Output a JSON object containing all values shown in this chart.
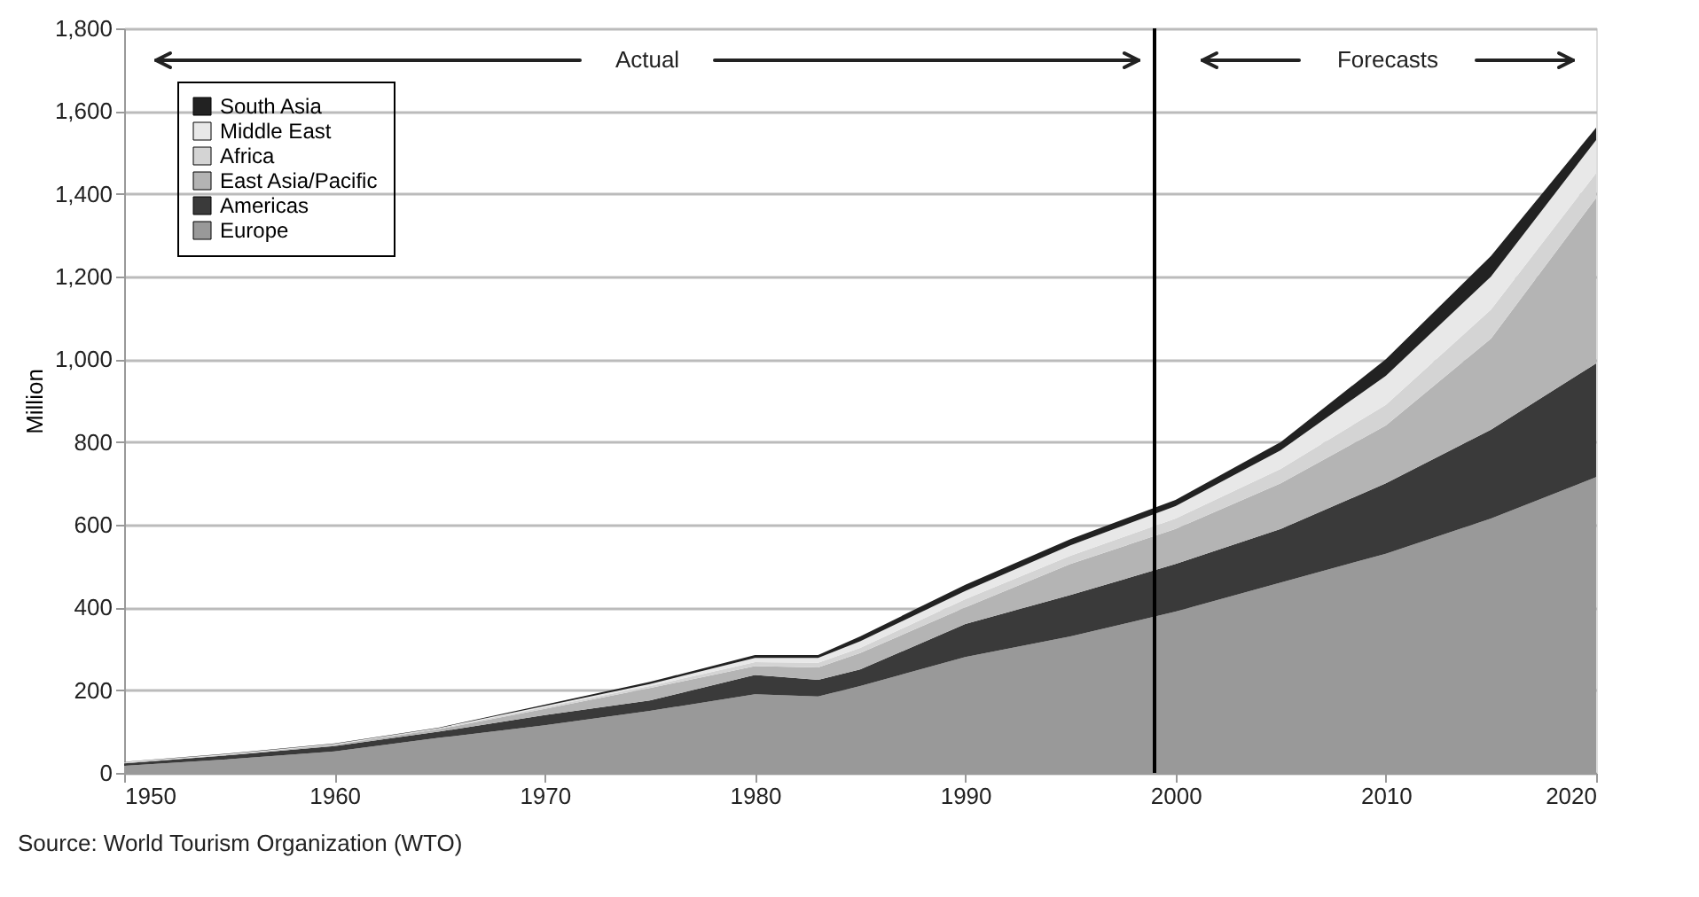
{
  "chart_data": {
    "type": "area",
    "stacked": true,
    "ylabel": "Million",
    "x": [
      1950,
      1955,
      1960,
      1965,
      1970,
      1975,
      1980,
      1983,
      1985,
      1990,
      1995,
      2000,
      2005,
      2010,
      2015,
      2020
    ],
    "series": [
      {
        "name": "Europe",
        "color": "#999999",
        "values": [
          17,
          33,
          52,
          85,
          115,
          150,
          190,
          185,
          210,
          280,
          330,
          390,
          460,
          530,
          615,
          715
        ]
      },
      {
        "name": "Americas",
        "color": "#3a3a3a",
        "values": [
          6,
          10,
          13,
          15,
          25,
          25,
          47,
          40,
          40,
          80,
          100,
          115,
          130,
          170,
          215,
          275
        ]
      },
      {
        "name": "East Asia/Pacific",
        "color": "#b4b4b4",
        "values": [
          1,
          1,
          3,
          6,
          15,
          30,
          21,
          30,
          40,
          40,
          75,
          85,
          110,
          140,
          220,
          400
        ]
      },
      {
        "name": "Africa",
        "color": "#d4d4d4",
        "values": [
          1,
          1,
          1,
          2,
          4,
          5,
          10,
          11,
          12,
          20,
          20,
          25,
          35,
          50,
          70,
          60
        ]
      },
      {
        "name": "Middle East",
        "color": "#e8e8e8",
        "values": [
          1,
          1,
          1,
          1,
          3,
          5,
          10,
          12,
          16,
          20,
          25,
          30,
          45,
          70,
          80,
          80
        ]
      },
      {
        "name": "South Asia",
        "color": "#222222",
        "values": [
          1,
          1,
          1,
          1,
          3,
          5,
          7,
          7,
          12,
          15,
          15,
          15,
          20,
          40,
          50,
          30
        ]
      }
    ],
    "xlim": [
      1950,
      2020
    ],
    "xticks": [
      1950,
      1960,
      1970,
      1980,
      1990,
      2000,
      2010,
      2020
    ],
    "ylim": [
      0,
      1800
    ],
    "yticks": [
      {
        "value": 0,
        "label": "0"
      },
      {
        "value": 200,
        "label": "200"
      },
      {
        "value": 400,
        "label": "400"
      },
      {
        "value": 600,
        "label": "600"
      },
      {
        "value": 800,
        "label": "800"
      },
      {
        "value": 1000,
        "label": "1,000"
      },
      {
        "value": 1200,
        "label": "1,200"
      },
      {
        "value": 1400,
        "label": "1,400"
      },
      {
        "value": 1600,
        "label": "1,600"
      },
      {
        "value": 1800,
        "label": "1,800"
      }
    ],
    "grid": "y",
    "legend": "top left",
    "ref_lines": [
      {
        "axis": "x",
        "value": 1999,
        "color": "#000000"
      }
    ],
    "annotations": [
      "Actual",
      "Forecasts",
      "Source: World Tourism Organization (WTO)"
    ]
  }
}
